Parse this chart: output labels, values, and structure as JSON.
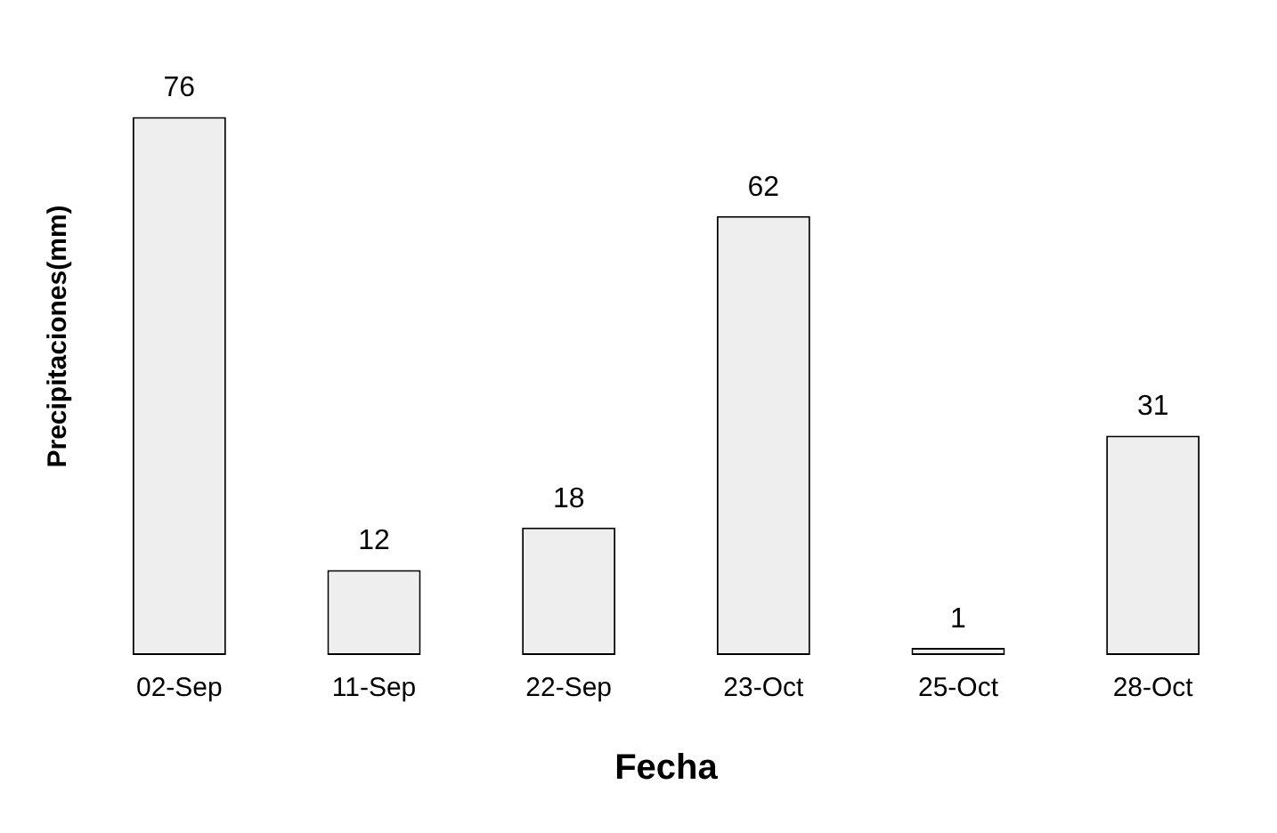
{
  "chart_data": {
    "type": "bar",
    "xlabel": "Fecha",
    "ylabel": "Precipitaciones(mm)",
    "categories": [
      "02-Sep",
      "11-Sep",
      "22-Sep",
      "23-Oct",
      "25-Oct",
      "28-Oct"
    ],
    "values": [
      76,
      12,
      18,
      62,
      1,
      31
    ],
    "color": "#eeeeee",
    "tick_labels": "x",
    "data_labels": true,
    "grid": false,
    "legend": false
  }
}
